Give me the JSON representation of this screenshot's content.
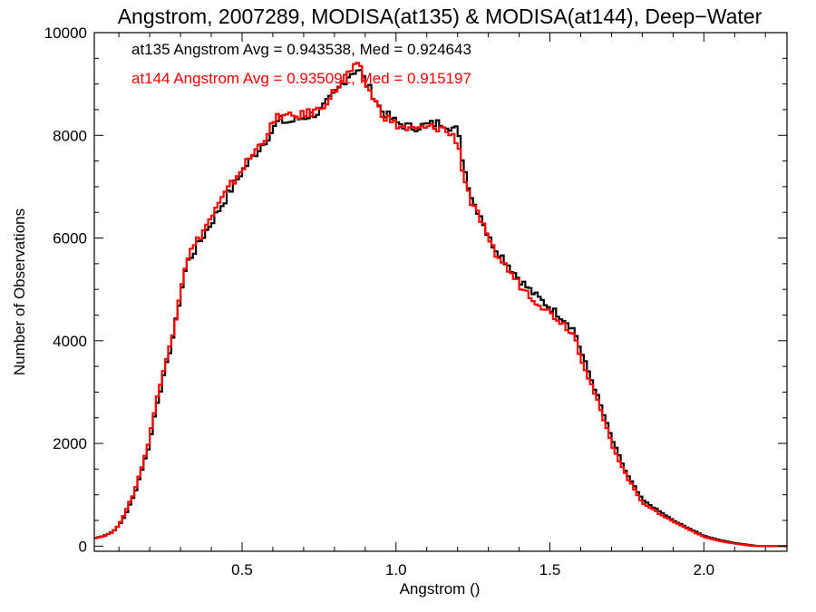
{
  "chart_data": {
    "type": "line",
    "title": "Angstrom, 2007289, MODISA(at135) & MODISA(at144), Deep−Water",
    "xlabel": "Angstrom ()",
    "ylabel": "Number of Observations",
    "xlim": [
      0.02,
      2.27
    ],
    "ylim": [
      -100,
      10000
    ],
    "xticks": [
      0.5,
      1.0,
      1.5,
      2.0
    ],
    "xtick_labels": [
      "0.5",
      "1.0",
      "1.5",
      "2.0"
    ],
    "yticks": [
      0,
      2000,
      4000,
      6000,
      8000,
      10000
    ],
    "ytick_labels": [
      "0",
      "2000",
      "4000",
      "6000",
      "8000",
      "10000"
    ],
    "grid": false,
    "annotations": [
      {
        "text": "at135 Angstrom Avg = 0.943538, Med = 0.924643",
        "color": "#000000"
      },
      {
        "text": "at144 Angstrom Avg = 0.935091, Med = 0.915197",
        "color": "#ff0000"
      }
    ],
    "series": [
      {
        "name": "at135",
        "color": "#000000",
        "x": [
          0.02,
          0.05,
          0.08,
          0.1,
          0.12,
          0.15,
          0.18,
          0.2,
          0.22,
          0.25,
          0.28,
          0.3,
          0.32,
          0.35,
          0.4,
          0.45,
          0.5,
          0.55,
          0.6,
          0.62,
          0.65,
          0.7,
          0.75,
          0.8,
          0.85,
          0.88,
          0.9,
          0.93,
          0.95,
          1.0,
          1.05,
          1.1,
          1.15,
          1.2,
          1.22,
          1.25,
          1.28,
          1.3,
          1.35,
          1.4,
          1.45,
          1.5,
          1.55,
          1.58,
          1.6,
          1.65,
          1.7,
          1.75,
          1.8,
          1.85,
          1.9,
          1.95,
          2.0,
          2.05,
          2.1,
          2.15,
          2.18,
          2.2,
          2.27
        ],
        "y": [
          150,
          200,
          280,
          400,
          600,
          1000,
          1600,
          2000,
          2700,
          3400,
          4200,
          4900,
          5500,
          5800,
          6300,
          6800,
          7300,
          7700,
          8100,
          8300,
          8250,
          8350,
          8450,
          8800,
          9200,
          9300,
          9050,
          8750,
          8500,
          8250,
          8150,
          8200,
          8250,
          8100,
          7400,
          6700,
          6400,
          6000,
          5600,
          5200,
          4900,
          4650,
          4400,
          4200,
          3800,
          3000,
          2100,
          1400,
          900,
          700,
          500,
          350,
          200,
          120,
          60,
          20,
          0,
          0,
          0
        ]
      },
      {
        "name": "at144",
        "color": "#ff0000",
        "x": [
          0.02,
          0.05,
          0.08,
          0.1,
          0.12,
          0.15,
          0.18,
          0.2,
          0.22,
          0.25,
          0.28,
          0.3,
          0.32,
          0.35,
          0.4,
          0.45,
          0.5,
          0.55,
          0.6,
          0.62,
          0.65,
          0.7,
          0.75,
          0.8,
          0.85,
          0.88,
          0.9,
          0.93,
          0.95,
          1.0,
          1.05,
          1.1,
          1.15,
          1.2,
          1.22,
          1.25,
          1.28,
          1.3,
          1.35,
          1.4,
          1.45,
          1.5,
          1.55,
          1.58,
          1.6,
          1.65,
          1.7,
          1.75,
          1.8,
          1.85,
          1.9,
          1.95,
          2.0,
          2.05,
          2.1,
          2.15,
          2.18,
          2.2,
          2.27
        ],
        "y": [
          150,
          190,
          270,
          420,
          650,
          1050,
          1650,
          2100,
          2800,
          3500,
          4300,
          5000,
          5600,
          5900,
          6400,
          6900,
          7350,
          7750,
          8200,
          8400,
          8350,
          8400,
          8500,
          8850,
          9250,
          9350,
          9000,
          8700,
          8450,
          8200,
          8100,
          8150,
          8150,
          7900,
          7200,
          6600,
          6300,
          5900,
          5500,
          5100,
          4800,
          4550,
          4300,
          4100,
          3700,
          2900,
          2000,
          1350,
          850,
          650,
          480,
          330,
          180,
          100,
          50,
          10,
          0,
          0,
          0
        ]
      }
    ]
  }
}
